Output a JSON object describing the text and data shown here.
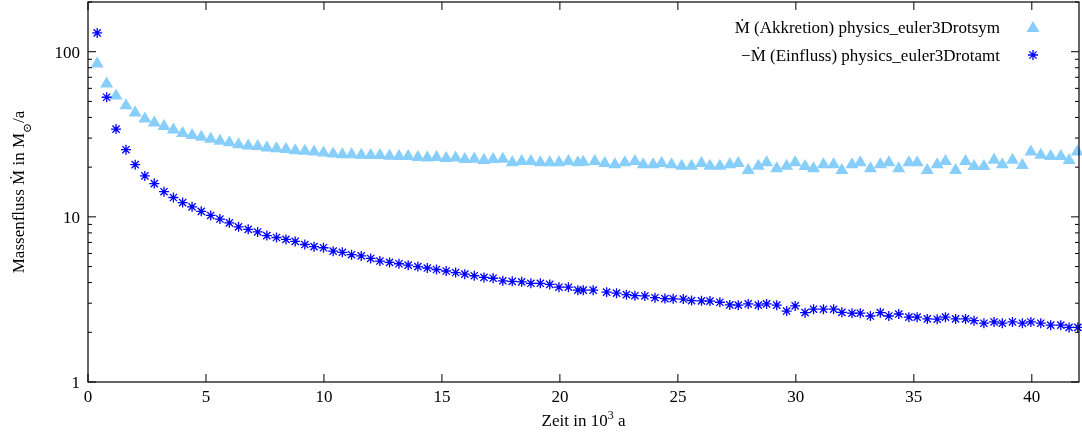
{
  "chart_data": {
    "type": "scatter",
    "xlabel": "Zeit in 10$^{3}$ a",
    "ylabel": "Massenfluss Ṁ in M$_{⊙}$/a",
    "log": "y",
    "legend": "top right",
    "grid": false,
    "xlim": [
      0,
      42
    ],
    "xticks": [
      0,
      5,
      10,
      15,
      20,
      25,
      30,
      35,
      40
    ],
    "ylim": [
      1,
      200
    ],
    "yticks": [
      1,
      {
        "value": 2,
        "label": null
      },
      {
        "value": 3,
        "label": null
      },
      {
        "value": 4,
        "label": null
      },
      {
        "value": 5,
        "label": null
      },
      {
        "value": 6,
        "label": null
      },
      {
        "value": 7,
        "label": null
      },
      {
        "value": 8,
        "label": null
      },
      {
        "value": 9,
        "label": null
      },
      10,
      {
        "value": 20,
        "label": null
      },
      {
        "value": 30,
        "label": null
      },
      {
        "value": 40,
        "label": null
      },
      {
        "value": 50,
        "label": null
      },
      {
        "value": 60,
        "label": null
      },
      {
        "value": 70,
        "label": null
      },
      {
        "value": 80,
        "label": null
      },
      {
        "value": 90,
        "label": null
      },
      100,
      {
        "value": 200,
        "label": null
      }
    ],
    "series": [
      {
        "name": "Ṁ (Akkretion) physics_euler3Drotsym",
        "color": "#87cefa",
        "marker": "triangle",
        "x": [
          0.39,
          0.79,
          1.19,
          1.61,
          2.0,
          2.41,
          2.81,
          3.22,
          3.62,
          4.01,
          4.41,
          4.8,
          5.2,
          5.59,
          5.99,
          6.38,
          6.79,
          7.19,
          7.58,
          7.99,
          8.39,
          8.78,
          9.19,
          9.58,
          9.98,
          10.39,
          10.78,
          11.17,
          11.58,
          11.98,
          12.37,
          12.78,
          13.18,
          13.57,
          13.98,
          14.38,
          14.77,
          15.18,
          15.58,
          15.97,
          16.37,
          16.78,
          17.17,
          17.58,
          17.98,
          18.38,
          18.77,
          19.17,
          19.57,
          19.96,
          20.36,
          20.76,
          20.99,
          21.48,
          21.9,
          22.33,
          22.75,
          23.18,
          23.53,
          23.95,
          24.31,
          24.73,
          25.16,
          25.58,
          26.0,
          26.36,
          26.78,
          27.2,
          27.56,
          27.98,
          28.41,
          28.76,
          29.19,
          29.61,
          29.97,
          30.39,
          30.75,
          31.17,
          31.6,
          31.95,
          32.38,
          32.73,
          33.16,
          33.58,
          33.94,
          34.36,
          34.79,
          35.14,
          35.57,
          35.99,
          36.34,
          36.77,
          37.19,
          37.55,
          37.97,
          38.4,
          38.75,
          39.18,
          39.6,
          39.96,
          40.38,
          40.8,
          41.23,
          41.58,
          41.93
        ],
        "values": [
          86,
          65,
          55,
          48,
          43.5,
          40,
          37.8,
          36,
          34.3,
          32.7,
          31.8,
          31,
          30.1,
          29.3,
          28.7,
          27.9,
          27.4,
          27.2,
          26.7,
          26.4,
          26.1,
          25.7,
          25.5,
          25.2,
          24.9,
          24.5,
          24.3,
          24.3,
          24.1,
          24.0,
          24.0,
          23.8,
          23.7,
          23.7,
          23.4,
          23.2,
          23.4,
          23.0,
          23.2,
          22.7,
          22.8,
          22.4,
          22.7,
          22.8,
          21.7,
          22.1,
          22.1,
          21.7,
          21.7,
          21.7,
          22.1,
          21.7,
          21.9,
          22.1,
          21.5,
          21.1,
          21.7,
          22.1,
          21.1,
          21.1,
          21.5,
          21.1,
          20.7,
          20.7,
          21.5,
          20.7,
          20.7,
          21.1,
          21.5,
          19.5,
          20.7,
          21.7,
          20.0,
          20.7,
          21.7,
          20.6,
          20.0,
          21.1,
          21.1,
          19.5,
          21.1,
          21.7,
          20.0,
          21.1,
          21.7,
          20.0,
          21.7,
          21.7,
          19.5,
          21.1,
          22.1,
          19.5,
          22.1,
          20.6,
          20.6,
          22.5,
          21.1,
          22.5,
          20.9,
          25.2,
          24.1,
          23.7,
          23.7,
          22.4,
          25.2
        ]
      },
      {
        "name": "−Ṁ (Einfluss) physics_euler3Drotamt",
        "color": "#0000ff",
        "marker": "cross",
        "x": [
          0.39,
          0.79,
          1.19,
          1.61,
          2.0,
          2.41,
          2.81,
          3.22,
          3.62,
          4.01,
          4.41,
          4.8,
          5.2,
          5.59,
          5.99,
          6.38,
          6.79,
          7.19,
          7.58,
          7.99,
          8.39,
          8.78,
          9.19,
          9.58,
          9.98,
          10.39,
          10.78,
          11.17,
          11.58,
          11.98,
          12.37,
          12.78,
          13.18,
          13.57,
          13.98,
          14.38,
          14.77,
          15.18,
          15.58,
          15.97,
          16.37,
          16.78,
          17.17,
          17.58,
          17.98,
          18.38,
          18.77,
          19.17,
          19.57,
          19.96,
          20.36,
          20.76,
          20.99,
          21.41,
          21.98,
          22.4,
          22.82,
          23.18,
          23.6,
          24.03,
          24.45,
          24.8,
          25.23,
          25.58,
          26.0,
          26.36,
          26.78,
          27.2,
          27.56,
          27.98,
          28.41,
          28.76,
          29.19,
          29.61,
          29.97,
          30.39,
          30.75,
          31.17,
          31.6,
          31.95,
          32.38,
          32.73,
          33.16,
          33.58,
          33.94,
          34.36,
          34.79,
          35.14,
          35.57,
          35.99,
          36.34,
          36.77,
          37.19,
          37.55,
          37.97,
          38.4,
          38.75,
          39.18,
          39.6,
          39.96,
          40.38,
          40.8,
          41.23,
          41.58,
          41.95
        ],
        "values": [
          130,
          53,
          34,
          25.5,
          20.7,
          17.7,
          15.9,
          14.2,
          13.1,
          12.2,
          11.5,
          10.8,
          10.2,
          9.7,
          9.2,
          8.7,
          8.4,
          8.1,
          7.7,
          7.5,
          7.3,
          7.1,
          6.8,
          6.6,
          6.5,
          6.2,
          6.1,
          5.9,
          5.8,
          5.6,
          5.4,
          5.3,
          5.2,
          5.1,
          5.0,
          4.9,
          4.8,
          4.7,
          4.6,
          4.5,
          4.4,
          4.3,
          4.25,
          4.1,
          4.07,
          4.04,
          3.96,
          3.96,
          3.9,
          3.75,
          3.75,
          3.6,
          3.6,
          3.6,
          3.5,
          3.45,
          3.38,
          3.33,
          3.32,
          3.24,
          3.2,
          3.19,
          3.18,
          3.11,
          3.1,
          3.09,
          3.04,
          2.93,
          2.92,
          2.97,
          2.92,
          2.97,
          2.92,
          2.69,
          2.89,
          2.63,
          2.76,
          2.76,
          2.76,
          2.64,
          2.61,
          2.61,
          2.51,
          2.63,
          2.51,
          2.58,
          2.47,
          2.47,
          2.41,
          2.4,
          2.47,
          2.41,
          2.41,
          2.35,
          2.27,
          2.31,
          2.27,
          2.31,
          2.27,
          2.31,
          2.27,
          2.21,
          2.21,
          2.14,
          2.14
        ]
      }
    ]
  }
}
